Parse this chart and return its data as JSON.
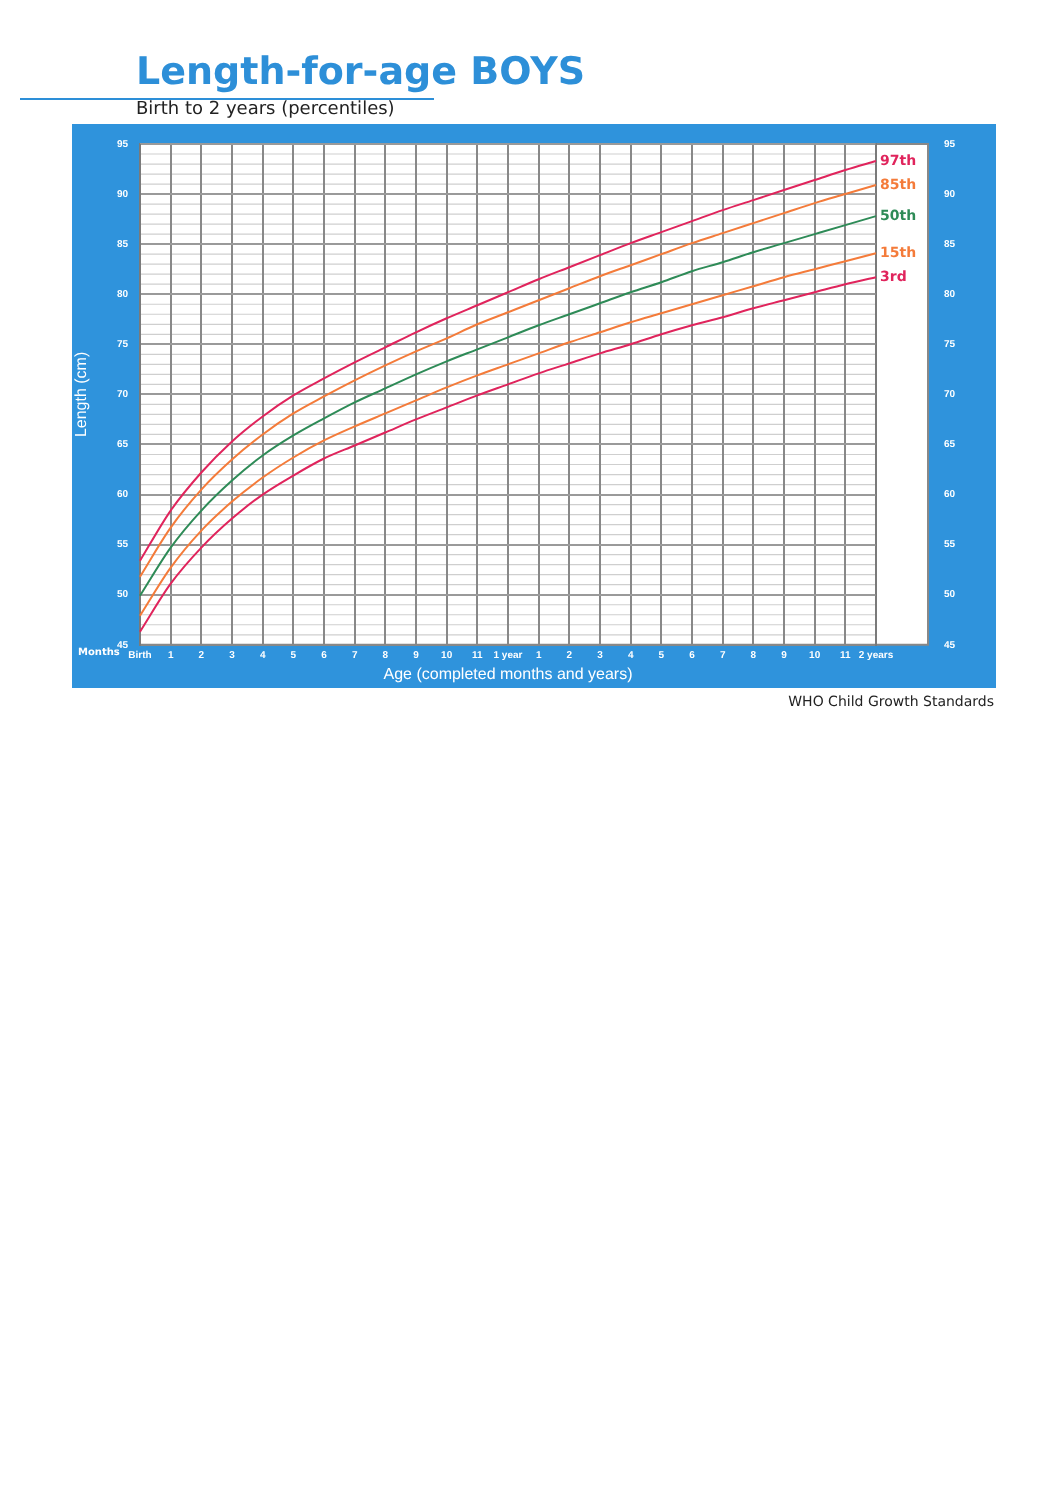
{
  "chart_data": {
    "type": "line",
    "title": "Length-for-age BOYS",
    "subtitle": "Birth to 2 years (percentiles)",
    "xlabel": "Age (completed months and years)",
    "ylabel": "Length (cm)",
    "categories": [
      "Birth",
      "1",
      "2",
      "3",
      "4",
      "5",
      "6",
      "7",
      "8",
      "9",
      "10",
      "11",
      "1 year",
      "1",
      "2",
      "3",
      "4",
      "5",
      "6",
      "7",
      "8",
      "9",
      "10",
      "11",
      "2 years"
    ],
    "series": [
      {
        "name": "97th",
        "color": "#e0245c",
        "values": [
          53.4,
          58.4,
          62.2,
          65.3,
          67.8,
          69.9,
          71.6,
          73.2,
          74.7,
          76.2,
          77.6,
          78.9,
          80.2,
          81.5,
          82.7,
          83.9,
          85.1,
          86.2,
          87.3,
          88.4,
          89.4,
          90.4,
          91.4,
          92.4,
          93.3
        ]
      },
      {
        "name": "85th",
        "color": "#f47b3a",
        "values": [
          51.8,
          56.7,
          60.5,
          63.5,
          66.0,
          68.1,
          69.8,
          71.4,
          72.9,
          74.3,
          75.6,
          77.0,
          78.2,
          79.4,
          80.6,
          81.8,
          82.9,
          84.0,
          85.1,
          86.1,
          87.1,
          88.1,
          89.1,
          90.0,
          90.9
        ]
      },
      {
        "name": "50th",
        "color": "#2e8b57",
        "values": [
          49.9,
          54.7,
          58.4,
          61.4,
          63.9,
          65.9,
          67.6,
          69.2,
          70.6,
          72.0,
          73.3,
          74.5,
          75.7,
          76.9,
          78.0,
          79.1,
          80.2,
          81.2,
          82.3,
          83.2,
          84.2,
          85.1,
          86.0,
          86.9,
          87.8
        ]
      },
      {
        "name": "15th",
        "color": "#f47b3a",
        "values": [
          47.9,
          52.7,
          56.4,
          59.3,
          61.7,
          63.7,
          65.4,
          66.8,
          68.1,
          69.4,
          70.7,
          71.9,
          73.0,
          74.1,
          75.2,
          76.2,
          77.2,
          78.1,
          79.0,
          79.9,
          80.8,
          81.7,
          82.5,
          83.3,
          84.1
        ]
      },
      {
        "name": "3rd",
        "color": "#e0245c",
        "values": [
          46.3,
          51.1,
          54.7,
          57.6,
          60.0,
          61.9,
          63.6,
          64.9,
          66.2,
          67.5,
          68.7,
          69.9,
          71.0,
          72.1,
          73.1,
          74.1,
          75.0,
          76.0,
          76.9,
          77.7,
          78.6,
          79.4,
          80.2,
          81.0,
          81.7
        ]
      }
    ],
    "ylim": [
      45,
      95
    ],
    "yticks": [
      45,
      50,
      55,
      60,
      65,
      70,
      75,
      80,
      85,
      90,
      95
    ],
    "y2lim": [
      45,
      95
    ],
    "y2ticks": [
      45,
      50,
      55,
      60,
      65,
      70,
      75,
      80,
      85,
      90,
      95
    ],
    "grid": true,
    "legend": false,
    "marker": "none",
    "line_style": "solid",
    "annotations": [
      "Months",
      "WHO Child Growth Standards"
    ]
  }
}
